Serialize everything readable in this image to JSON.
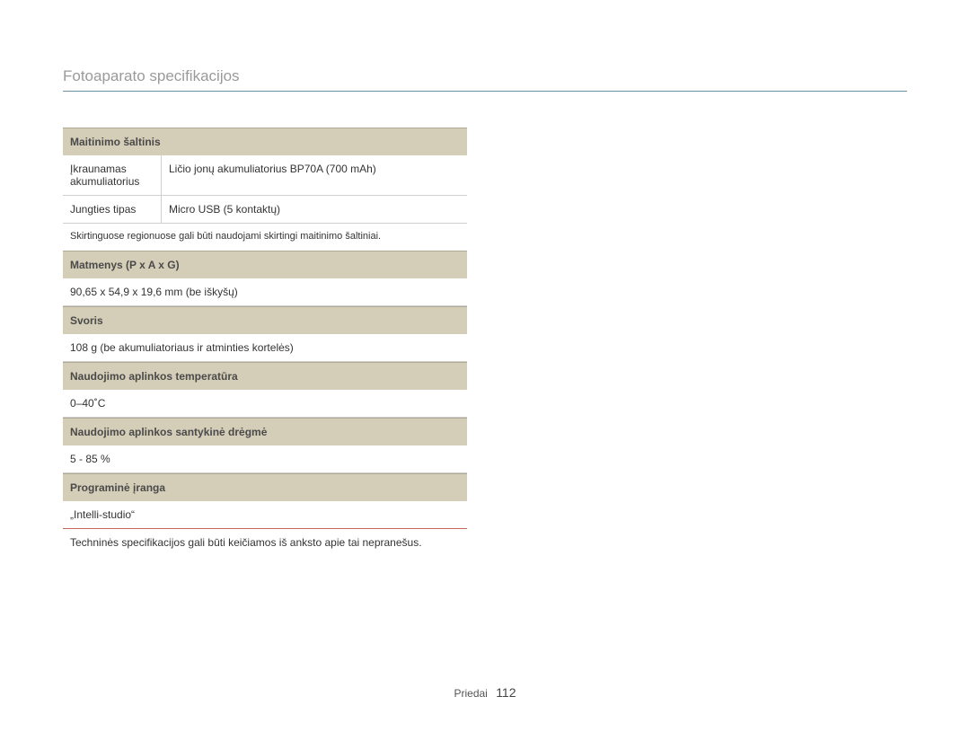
{
  "page": {
    "title": "Fotoaparato specifikacijos",
    "footer_section": "Priedai",
    "footer_page": "112"
  },
  "power": {
    "header": "Maitinimo šaltinis",
    "battery_label": "Įkraunamas akumuliatorius",
    "battery_value": "Ličio jonų akumuliatorius BP70A (700 mAh)",
    "connector_label": "Jungties tipas",
    "connector_value": "Micro USB (5 kontaktų)",
    "note": "Skirtinguose regionuose gali būti naudojami skirtingi maitinimo šaltiniai."
  },
  "dimensions": {
    "header": "Matmenys (P x A x G)",
    "value": "90,65 x 54,9 x 19,6 mm (be iškyšų)"
  },
  "weight": {
    "header": "Svoris",
    "value": "108 g (be akumuliatoriaus ir atminties kortelės)"
  },
  "op_temp": {
    "header": "Naudojimo aplinkos temperatūra",
    "value": "0–40˚C"
  },
  "op_humidity": {
    "header": "Naudojimo aplinkos santykinė drėgmė",
    "value": "5 - 85 %"
  },
  "software": {
    "header": "Programinė įranga",
    "value": "„Intelli-studio“"
  },
  "disclaimer": "Techninės specifikacijos gali būti keičiamos iš anksto apie tai nepranešus."
}
